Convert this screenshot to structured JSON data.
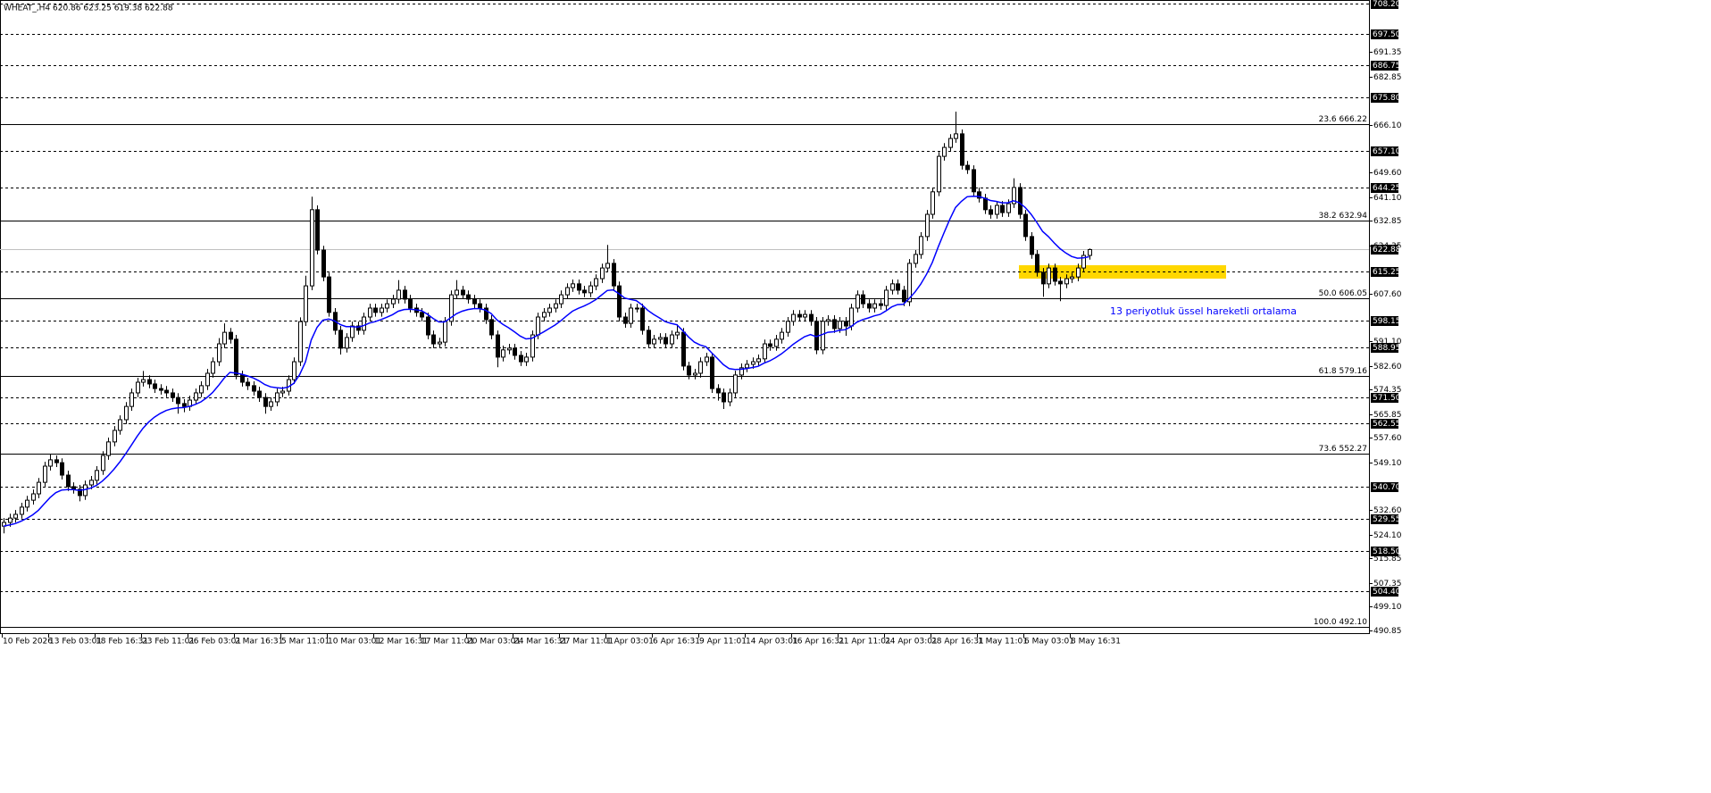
{
  "chart_data": {
    "type": "candlestick",
    "title": "WHEAT_,H4 620.86 623.25 619.38 622.88",
    "annotation": "13 periyotluk üssel hareketli ortalama",
    "ylim": [
      489.6,
      709.4
    ],
    "up_color": "#ffffff",
    "down_color": "#000000",
    "wick_color": "#000000",
    "categories": [
      "10 Feb 2026",
      null,
      null,
      null,
      null,
      null,
      null,
      null,
      "13 Feb 03:01",
      null,
      null,
      null,
      null,
      null,
      null,
      null,
      "18 Feb 16:31",
      null,
      null,
      null,
      null,
      null,
      null,
      null,
      "23 Feb 11:01",
      null,
      null,
      null,
      null,
      null,
      null,
      null,
      "26 Feb 03:01",
      null,
      null,
      null,
      null,
      null,
      null,
      null,
      "2 Mar 16:31",
      null,
      null,
      null,
      null,
      null,
      null,
      null,
      "5 Mar 11:01",
      null,
      null,
      null,
      null,
      null,
      null,
      null,
      "10 Mar 03:01",
      null,
      null,
      null,
      null,
      null,
      null,
      null,
      "12 Mar 16:31",
      null,
      null,
      null,
      null,
      null,
      null,
      null,
      "17 Mar 11:01",
      null,
      null,
      null,
      null,
      null,
      null,
      null,
      "20 Mar 03:01",
      null,
      null,
      null,
      null,
      null,
      null,
      null,
      "24 Mar 16:31",
      null,
      null,
      null,
      null,
      null,
      null,
      null,
      "27 Mar 11:01",
      null,
      null,
      null,
      null,
      null,
      null,
      null,
      "1 Apr 03:01",
      null,
      null,
      null,
      null,
      null,
      null,
      null,
      "6 Apr 16:31",
      null,
      null,
      null,
      null,
      null,
      null,
      null,
      "9 Apr 11:01",
      null,
      null,
      null,
      null,
      null,
      null,
      null,
      "14 Apr 03:01",
      null,
      null,
      null,
      null,
      null,
      null,
      null,
      "16 Apr 16:31",
      null,
      null,
      null,
      null,
      null,
      null,
      null,
      "21 Apr 11:01",
      null,
      null,
      null,
      null,
      null,
      null,
      null,
      "24 Apr 03:01",
      null,
      null,
      null,
      null,
      null,
      null,
      null,
      "28 Apr 16:31",
      null,
      null,
      null,
      null,
      null,
      null,
      null,
      "1 May 11:01",
      null,
      null,
      null,
      null,
      null,
      null,
      null,
      "6 May 03:01",
      null,
      null,
      null,
      null,
      null,
      null,
      null,
      "8 May 16:31",
      null,
      null,
      null
    ],
    "open": [
      527.0,
      528.3,
      529.8,
      531.1,
      533.6,
      536.0,
      538.2,
      542.2,
      547.8,
      550.0,
      549.0,
      544.7,
      540.7,
      539.8,
      537.6,
      541.3,
      542.9,
      546.3,
      551.5,
      556.2,
      560.2,
      563.9,
      568.5,
      573.2,
      576.9,
      577.8,
      576.3,
      574.7,
      574.1,
      573.2,
      571.6,
      569.5,
      568.5,
      570.7,
      573.2,
      575.7,
      580.0,
      584.0,
      590.2,
      594.2,
      591.8,
      579.4,
      576.9,
      575.7,
      573.8,
      571.6,
      568.5,
      570.1,
      573.2,
      573.8,
      577.8,
      584.0,
      597.9,
      610.3,
      636.7,
      622.7,
      613.4,
      601.1,
      594.9,
      588.7,
      592.4,
      596.4,
      594.9,
      599.5,
      602.6,
      601.1,
      602.6,
      604.1,
      605.7,
      608.8,
      605.7,
      602.6,
      601.1,
      599.5,
      593.3,
      590.2,
      590.8,
      598.0,
      607.2,
      608.8,
      607.2,
      605.7,
      604.1,
      602.6,
      598.6,
      593.3,
      585.6,
      588.1,
      588.7,
      586.2,
      584.0,
      585.6,
      593.3,
      599.5,
      601.1,
      602.6,
      604.1,
      607.2,
      609.7,
      611.0,
      608.8,
      607.9,
      610.3,
      612.8,
      616.5,
      618.1,
      610.3,
      599.5,
      597.3,
      602.6,
      602.6,
      594.9,
      590.2,
      591.8,
      592.4,
      590.2,
      593.3,
      594.2,
      582.5,
      579.4,
      580.0,
      584.0,
      585.6,
      574.7,
      573.2,
      570.1,
      573.2,
      579.4,
      581.9,
      583.1,
      584.0,
      585.0,
      590.2,
      589.3,
      591.8,
      594.2,
      598.0,
      600.4,
      599.5,
      600.4,
      598.0,
      588.1,
      598.0,
      598.6,
      595.5,
      598.0,
      596.4,
      602.6,
      607.2,
      604.1,
      602.6,
      604.1,
      603.5,
      608.8,
      611.0,
      608.8,
      604.8,
      618.1,
      621.2,
      627.4,
      635.1,
      642.9,
      655.2,
      658.3,
      661.4,
      663.0,
      652.1,
      650.6,
      642.9,
      640.7,
      636.7,
      635.1,
      638.2,
      635.7,
      638.8,
      644.4,
      635.1,
      627.4,
      621.2,
      615.0,
      611.0,
      616.5,
      611.9,
      611.0,
      612.8,
      613.4,
      616.5,
      620.86
    ],
    "high": [
      529.8,
      531.3,
      532.6,
      535.1,
      537.5,
      539.7,
      543.7,
      549.3,
      552.0,
      551.5,
      550.5,
      546.2,
      542.2,
      541.3,
      542.8,
      544.4,
      547.8,
      553.0,
      557.7,
      561.7,
      565.4,
      570.0,
      574.7,
      578.4,
      580.8,
      579.3,
      577.8,
      576.2,
      575.6,
      574.7,
      573.1,
      571.0,
      572.2,
      574.7,
      577.2,
      581.5,
      585.5,
      592.2,
      597.3,
      595.7,
      593.3,
      580.9,
      578.4,
      577.2,
      575.3,
      573.1,
      571.6,
      574.7,
      575.3,
      579.3,
      585.5,
      599.4,
      613.8,
      641.2,
      638.2,
      624.2,
      614.9,
      602.6,
      596.4,
      593.9,
      597.9,
      597.9,
      601.0,
      604.1,
      604.1,
      604.1,
      605.6,
      607.2,
      612.3,
      610.3,
      607.2,
      604.1,
      602.6,
      601.0,
      594.8,
      592.3,
      599.5,
      608.7,
      612.3,
      610.3,
      608.7,
      607.2,
      605.6,
      604.1,
      600.1,
      594.8,
      589.6,
      590.2,
      590.2,
      587.7,
      587.1,
      594.8,
      601.0,
      602.6,
      604.1,
      605.6,
      608.7,
      611.2,
      612.5,
      612.5,
      610.3,
      611.8,
      614.3,
      618.0,
      624.5,
      619.6,
      611.8,
      601.0,
      604.1,
      604.1,
      604.1,
      596.4,
      593.3,
      593.9,
      593.9,
      594.8,
      597.0,
      595.7,
      584.0,
      581.5,
      585.5,
      587.1,
      587.1,
      576.2,
      574.7,
      574.7,
      580.9,
      583.4,
      584.6,
      585.5,
      586.5,
      591.7,
      591.7,
      593.3,
      595.7,
      599.5,
      601.9,
      601.9,
      601.9,
      601.9,
      599.5,
      599.5,
      600.1,
      600.1,
      599.5,
      599.5,
      604.1,
      608.7,
      608.7,
      605.6,
      605.6,
      605.6,
      610.3,
      612.5,
      612.5,
      610.3,
      619.6,
      622.7,
      628.9,
      636.6,
      644.4,
      656.7,
      659.8,
      662.9,
      670.7,
      664.5,
      653.6,
      652.1,
      644.4,
      642.2,
      638.2,
      639.7,
      639.7,
      640.3,
      647.6,
      645.9,
      636.6,
      628.9,
      622.7,
      616.5,
      618.0,
      618.0,
      613.4,
      614.3,
      614.9,
      618.0,
      622.4,
      623.25
    ],
    "low": [
      524.5,
      526.8,
      528.3,
      529.6,
      532.1,
      534.5,
      536.7,
      540.7,
      546.3,
      547.5,
      543.2,
      539.2,
      538.3,
      535.6,
      536.1,
      539.8,
      541.4,
      544.8,
      550.0,
      554.7,
      558.7,
      562.4,
      567.0,
      571.7,
      575.4,
      574.8,
      573.2,
      572.6,
      571.7,
      570.1,
      566.0,
      566.5,
      567.0,
      569.2,
      571.7,
      574.2,
      578.5,
      582.5,
      588.7,
      590.3,
      577.9,
      575.4,
      574.2,
      572.3,
      570.1,
      566.0,
      567.0,
      568.6,
      571.7,
      572.3,
      576.3,
      582.5,
      596.4,
      608.8,
      621.2,
      611.9,
      599.6,
      593.4,
      586.5,
      587.2,
      590.9,
      593.4,
      593.4,
      598.0,
      599.6,
      599.6,
      601.1,
      602.6,
      604.2,
      604.2,
      601.1,
      599.6,
      598.0,
      591.8,
      588.7,
      588.7,
      589.3,
      596.5,
      605.7,
      605.7,
      604.2,
      602.6,
      601.1,
      597.1,
      591.8,
      582.1,
      584.1,
      586.6,
      584.7,
      582.5,
      582.5,
      584.1,
      591.8,
      598.0,
      599.6,
      601.1,
      602.6,
      605.7,
      608.2,
      607.3,
      606.4,
      606.4,
      608.8,
      611.3,
      615.0,
      608.8,
      598.0,
      595.8,
      595.8,
      601.1,
      593.4,
      588.7,
      588.7,
      590.3,
      588.7,
      588.7,
      591.8,
      581.0,
      577.9,
      577.9,
      578.5,
      582.5,
      573.2,
      570.5,
      567.6,
      568.6,
      571.7,
      577.9,
      580.4,
      581.6,
      582.5,
      583.5,
      587.8,
      587.8,
      590.3,
      592.7,
      596.5,
      598.0,
      598.0,
      596.5,
      586.6,
      586.6,
      596.5,
      594.0,
      594.0,
      593.0,
      594.9,
      601.1,
      602.6,
      601.1,
      601.1,
      602.0,
      602.0,
      607.3,
      607.3,
      603.3,
      603.3,
      616.6,
      619.7,
      625.9,
      633.6,
      641.4,
      653.7,
      656.8,
      659.9,
      650.6,
      649.1,
      641.4,
      639.2,
      635.2,
      633.6,
      633.6,
      634.2,
      634.2,
      637.3,
      633.6,
      625.9,
      619.7,
      613.5,
      606.5,
      609.5,
      610.4,
      605.0,
      609.5,
      611.3,
      611.9,
      615.0,
      619.38
    ],
    "close": [
      528.3,
      529.8,
      531.1,
      533.6,
      536.0,
      538.2,
      542.2,
      547.8,
      550.0,
      549.0,
      544.7,
      540.7,
      539.8,
      537.6,
      541.3,
      542.9,
      546.3,
      551.5,
      556.2,
      560.2,
      563.9,
      568.5,
      573.2,
      576.9,
      577.8,
      576.3,
      574.7,
      574.1,
      573.2,
      571.6,
      569.5,
      568.5,
      570.7,
      573.2,
      575.7,
      580.0,
      584.0,
      590.2,
      594.2,
      591.8,
      579.4,
      576.9,
      575.7,
      573.8,
      571.6,
      568.5,
      570.1,
      573.2,
      573.8,
      577.8,
      584.0,
      597.9,
      610.3,
      636.7,
      622.7,
      613.4,
      601.1,
      594.9,
      588.7,
      592.4,
      596.4,
      594.9,
      599.5,
      602.6,
      601.1,
      602.6,
      604.1,
      605.7,
      608.8,
      605.7,
      602.6,
      601.1,
      599.5,
      593.3,
      590.2,
      590.8,
      598.0,
      607.2,
      608.8,
      607.2,
      605.7,
      604.1,
      602.6,
      598.6,
      593.3,
      585.6,
      588.1,
      588.7,
      586.2,
      584.0,
      585.6,
      593.3,
      599.5,
      601.1,
      602.6,
      604.1,
      607.2,
      609.7,
      611.0,
      608.8,
      607.9,
      610.3,
      612.8,
      616.5,
      618.1,
      610.3,
      599.5,
      597.3,
      602.6,
      602.6,
      594.9,
      590.2,
      591.8,
      592.4,
      590.2,
      593.3,
      594.2,
      582.5,
      579.4,
      580.0,
      584.0,
      585.6,
      574.7,
      573.2,
      570.1,
      573.2,
      579.4,
      581.9,
      583.1,
      584.0,
      585.0,
      590.2,
      589.3,
      591.8,
      594.2,
      598.0,
      600.4,
      599.5,
      600.4,
      598.0,
      588.1,
      598.0,
      598.6,
      595.5,
      598.0,
      596.4,
      602.6,
      607.2,
      604.1,
      602.6,
      604.1,
      603.5,
      608.8,
      611.0,
      608.8,
      604.8,
      618.1,
      621.2,
      627.4,
      635.1,
      642.9,
      655.2,
      658.3,
      661.4,
      663.0,
      652.1,
      650.6,
      642.9,
      640.7,
      636.7,
      635.1,
      638.2,
      635.7,
      638.8,
      644.4,
      635.1,
      627.4,
      621.2,
      615.0,
      611.0,
      616.5,
      611.9,
      611.0,
      612.8,
      613.4,
      616.5,
      620.86,
      622.88
    ],
    "ema": {
      "color": "#0000ff",
      "values": [
        527.0,
        527.4,
        527.9,
        528.7,
        529.7,
        530.9,
        532.5,
        534.7,
        536.9,
        538.6,
        539.5,
        539.7,
        539.7,
        539.4,
        539.7,
        540.2,
        541.1,
        542.6,
        544.5,
        546.7,
        549.2,
        552.0,
        555.0,
        558.1,
        560.9,
        563.1,
        564.8,
        566.1,
        567.1,
        567.7,
        568.0,
        568.1,
        568.5,
        569.2,
        570.1,
        571.5,
        573.3,
        575.7,
        578.3,
        580.3,
        580.1,
        579.7,
        579.1,
        578.4,
        577.4,
        576.1,
        575.3,
        575.0,
        574.8,
        575.2,
        576.5,
        579.5,
        583.9,
        591.5,
        595.9,
        598.4,
        598.8,
        598.2,
        596.9,
        596.2,
        596.2,
        596.0,
        596.5,
        597.4,
        597.9,
        598.6,
        599.4,
        600.3,
        601.5,
        602.1,
        602.2,
        602.0,
        601.7,
        600.5,
        599.0,
        597.8,
        597.8,
        599.2,
        600.6,
        601.5,
        602.1,
        602.4,
        602.4,
        601.9,
        600.7,
        598.5,
        597.0,
        595.8,
        594.4,
        592.9,
        591.9,
        592.1,
        593.2,
        594.3,
        595.5,
        596.7,
        598.2,
        599.9,
        601.5,
        602.5,
        603.3,
        604.3,
        605.5,
        607.1,
        608.7,
        608.9,
        607.6,
        606.1,
        605.6,
        605.2,
        603.7,
        601.8,
        600.4,
        599.2,
        597.9,
        597.3,
        596.8,
        594.8,
        592.6,
        590.8,
        589.8,
        589.2,
        587.1,
        585.1,
        583.0,
        581.6,
        581.3,
        581.4,
        581.6,
        582.0,
        582.4,
        583.5,
        584.3,
        585.4,
        586.7,
        588.3,
        590.0,
        591.4,
        592.7,
        593.4,
        592.7,
        593.4,
        594.2,
        594.4,
        594.9,
        595.1,
        596.2,
        597.7,
        598.6,
        599.2,
        599.9,
        600.4,
        601.6,
        603.0,
        603.8,
        603.9,
        605.9,
        608.1,
        610.9,
        614.3,
        618.4,
        623.7,
        628.6,
        633.3,
        637.5,
        639.6,
        641.2,
        641.4,
        641.3,
        640.7,
        639.9,
        639.6,
        639.1,
        639.1,
        639.8,
        639.1,
        637.5,
        635.2,
        632.3,
        629.2,
        627.4,
        625.2,
        623.2,
        621.7,
        620.5,
        619.9,
        620.0,
        620.4
      ]
    },
    "yticks": [
      {
        "value": 691.35,
        "label": "691.35"
      },
      {
        "value": 682.85,
        "label": "682.85"
      },
      {
        "value": 666.1,
        "label": "666.10"
      },
      {
        "value": 649.6,
        "label": "649.60"
      },
      {
        "value": 641.1,
        "label": "641.10"
      },
      {
        "value": 632.85,
        "label": "632.85"
      },
      {
        "value": 624.35,
        "label": "624.35"
      },
      {
        "value": 607.6,
        "label": "607.60"
      },
      {
        "value": 591.1,
        "label": "591.10"
      },
      {
        "value": 582.6,
        "label": "582.60"
      },
      {
        "value": 574.35,
        "label": "574.35"
      },
      {
        "value": 565.85,
        "label": "565.85"
      },
      {
        "value": 557.6,
        "label": "557.60"
      },
      {
        "value": 549.1,
        "label": "549.10"
      },
      {
        "value": 532.6,
        "label": "532.60"
      },
      {
        "value": 524.1,
        "label": "524.10"
      },
      {
        "value": 515.85,
        "label": "515.85"
      },
      {
        "value": 507.35,
        "label": "507.35"
      },
      {
        "value": 499.1,
        "label": "499.10"
      },
      {
        "value": 490.85,
        "label": "490.85"
      }
    ],
    "levels": [
      {
        "value": 708.2,
        "label": "708.20"
      },
      {
        "value": 697.5,
        "label": "697.50"
      },
      {
        "value": 686.75,
        "label": "686.75"
      },
      {
        "value": 675.8,
        "label": "675.80"
      },
      {
        "value": 657.1,
        "label": "657.10"
      },
      {
        "value": 644.25,
        "label": "644.25"
      },
      {
        "value": 615.25,
        "label": "615.25"
      },
      {
        "value": 598.15,
        "label": "598.15"
      },
      {
        "value": 588.95,
        "label": "588.95"
      },
      {
        "value": 571.5,
        "label": "571.50"
      },
      {
        "value": 562.55,
        "label": "562.55"
      },
      {
        "value": 540.7,
        "label": "540.70"
      },
      {
        "value": 529.55,
        "label": "529.55"
      },
      {
        "value": 518.5,
        "label": "518.50"
      },
      {
        "value": 504.4,
        "label": "504.40"
      }
    ],
    "price_line": {
      "value": 622.88,
      "label": "622.88"
    },
    "fib_levels": [
      {
        "value": 666.22,
        "label": "23.6 666.22"
      },
      {
        "value": 632.94,
        "label": "38.2 632.94"
      },
      {
        "value": 606.05,
        "label": "50.0 606.05"
      },
      {
        "value": 579.16,
        "label": "61.8 579.16"
      },
      {
        "value": 552.27,
        "label": "73.6 552.27"
      },
      {
        "value": 492.1,
        "label": "100.0 492.10"
      }
    ]
  }
}
